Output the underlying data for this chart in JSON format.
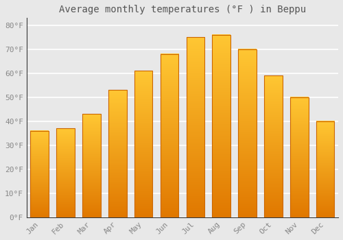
{
  "title": "Average monthly temperatures (°F ) in Beppu",
  "months": [
    "Jan",
    "Feb",
    "Mar",
    "Apr",
    "May",
    "Jun",
    "Jul",
    "Aug",
    "Sep",
    "Oct",
    "Nov",
    "Dec"
  ],
  "values": [
    36,
    37,
    43,
    53,
    61,
    68,
    75,
    76,
    70,
    59,
    50,
    40
  ],
  "bar_color_top": "#FFC020",
  "bar_color_bottom": "#E07800",
  "background_color": "#e8e8e8",
  "grid_color": "#ffffff",
  "yticks": [
    0,
    10,
    20,
    30,
    40,
    50,
    60,
    70,
    80
  ],
  "ylim": [
    0,
    83
  ],
  "title_fontsize": 10,
  "tick_fontsize": 8,
  "tick_color": "#888888",
  "bar_edge_color": "#cc6600"
}
